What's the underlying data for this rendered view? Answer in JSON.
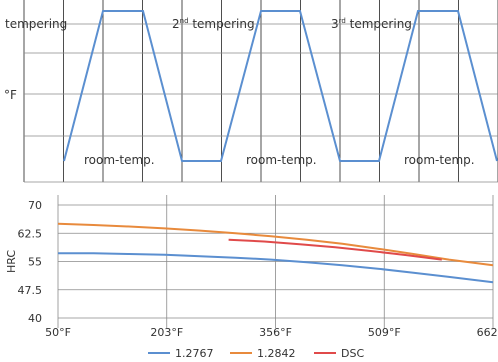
{
  "chart_data": [
    {
      "type": "line",
      "ylabel": "°F",
      "line_color": "#5b8fd0",
      "grid": true,
      "profile": [
        0,
        1,
        1,
        0,
        0,
        1,
        1,
        0,
        0,
        1,
        1,
        0
      ],
      "labels": [
        {
          "text": "tempering",
          "level": "high"
        },
        {
          "text": "2",
          "sup": "nd",
          "rest": " tempering",
          "level": "high"
        },
        {
          "text": "3",
          "sup": "rd",
          "rest": " tempering",
          "level": "high"
        },
        {
          "text": "room-temp.",
          "level": "low"
        },
        {
          "text": "room-temp.",
          "level": "low"
        },
        {
          "text": "room-temp.",
          "level": "low"
        }
      ]
    },
    {
      "type": "line",
      "ylabel": "HRC",
      "ylim": [
        40,
        70
      ],
      "yticks": [
        "40",
        "47.5",
        "55",
        "62.5",
        "70"
      ],
      "ytick_values": [
        40,
        47.5,
        55,
        62.5,
        70
      ],
      "xlim": [
        50,
        662
      ],
      "xticks": [
        "50°F",
        "203°F",
        "356°F",
        "509°F",
        "662°F"
      ],
      "xtick_values": [
        50,
        203,
        356,
        509,
        662
      ],
      "grid": true,
      "series": [
        {
          "name": "1.2767",
          "color": "#5b8fd0",
          "x": [
            50,
            100,
            150,
            200,
            250,
            300,
            350,
            400,
            450,
            500,
            550,
            600,
            662
          ],
          "y": [
            57.2,
            57.2,
            57.0,
            56.8,
            56.4,
            56.0,
            55.5,
            54.8,
            54.0,
            53.1,
            52.0,
            50.9,
            49.5
          ]
        },
        {
          "name": "1.2842",
          "color": "#e88a3c",
          "x": [
            50,
            100,
            150,
            200,
            250,
            300,
            350,
            400,
            450,
            500,
            550,
            600,
            662
          ],
          "y": [
            65.0,
            64.7,
            64.3,
            63.8,
            63.2,
            62.5,
            61.7,
            60.8,
            59.7,
            58.4,
            57.0,
            55.5,
            54.0
          ]
        },
        {
          "name": "DSC",
          "color": "#e04a4a",
          "x": [
            290,
            340,
            390,
            440,
            490,
            540,
            590
          ],
          "y": [
            60.8,
            60.3,
            59.6,
            58.8,
            57.8,
            56.7,
            55.5
          ]
        }
      ]
    }
  ]
}
